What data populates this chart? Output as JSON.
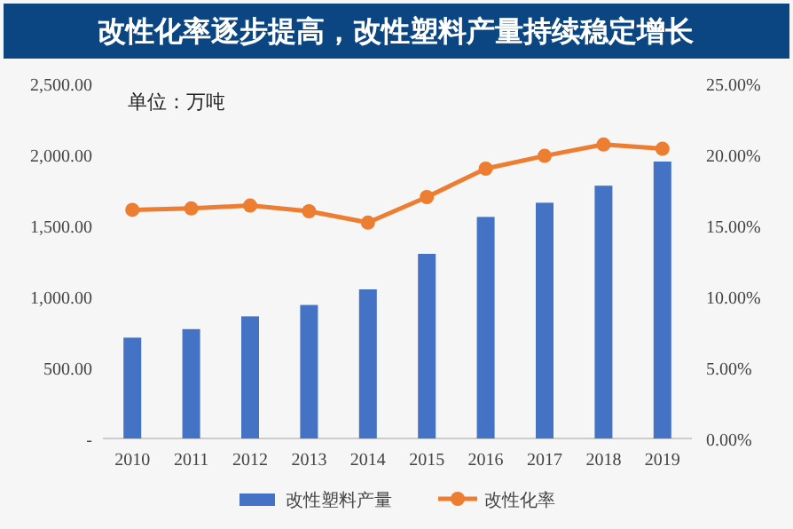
{
  "chart_data": {
    "type": "bar",
    "title": "改性化率逐步提高，改性塑料产量持续稳定增长",
    "annotations": [
      "单位：万吨"
    ],
    "categories": [
      "2010",
      "2011",
      "2012",
      "2013",
      "2014",
      "2015",
      "2016",
      "2017",
      "2018",
      "2019"
    ],
    "series": [
      {
        "name": "改性塑料产量",
        "color": "#4472c4",
        "values": [
          710,
          770,
          860,
          940,
          1050,
          1300,
          1560,
          1660,
          1780,
          1950
        ]
      },
      {
        "name": "改性化率",
        "type": "line",
        "axis": "y2",
        "color": "#ed7d31",
        "marker": "circle",
        "values": [
          16.1,
          16.2,
          16.4,
          16.0,
          15.2,
          17.0,
          19.0,
          19.9,
          20.7,
          20.4
        ]
      }
    ],
    "ylim": [
      0,
      2500
    ],
    "yticks": [
      {
        "value": 0,
        "label": "-"
      },
      {
        "value": 500,
        "label": "500.00"
      },
      {
        "value": 1000,
        "label": "1,000.00"
      },
      {
        "value": 1500,
        "label": "1,500.00"
      },
      {
        "value": 2000,
        "label": "2,000.00"
      },
      {
        "value": 2500,
        "label": "2,500.00"
      }
    ],
    "y2lim": [
      0,
      25
    ],
    "y2ticks": [
      {
        "value": 0,
        "label": "0.00%"
      },
      {
        "value": 5,
        "label": "5.00%"
      },
      {
        "value": 10,
        "label": "10.00%"
      },
      {
        "value": 15,
        "label": "15.00%"
      },
      {
        "value": 20,
        "label": "20.00%"
      },
      {
        "value": 25,
        "label": "25.00%"
      }
    ],
    "grid": false,
    "legend": "bottom"
  }
}
